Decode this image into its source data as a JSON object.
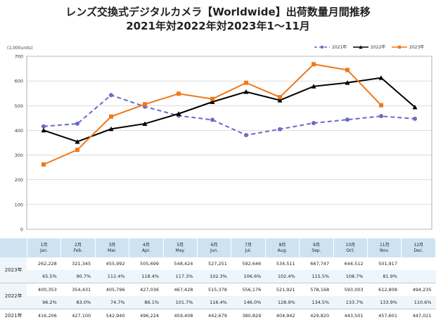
{
  "title_line1": "レンズ交換式デジタルカメラ【Worldwide】出荷数量月間推移",
  "title_line2": "2021年対2022年対2023年1～11月",
  "chart_data": {
    "type": "line",
    "unit_label": "(1,000units)",
    "ylim": [
      0,
      700
    ],
    "yticks": [
      0,
      100,
      200,
      300,
      400,
      500,
      600,
      700
    ],
    "grid": "horizontal",
    "legend_position": "top-right",
    "categories": [
      "1月 Jan.",
      "2月 Feb.",
      "3月 Mar.",
      "4月 Apr.",
      "5月 May.",
      "6月 Jun.",
      "7月 Jul.",
      "8月 Aug.",
      "9月 Sep.",
      "10月 Oct.",
      "11月 Nov.",
      "12月 Dec."
    ],
    "series": [
      {
        "name": "2021年",
        "color": "#6a6ac8",
        "style": "dashed",
        "marker": "circle",
        "values": [
          416.2,
          427.1,
          542.9,
          496.2,
          459.4,
          442.7,
          380.8,
          404.9,
          429.8,
          443.5,
          457.6,
          447.0
        ]
      },
      {
        "name": "2022年",
        "color": "#000000",
        "style": "solid",
        "marker": "triangle",
        "values": [
          400.4,
          354.4,
          405.8,
          427.0,
          467.4,
          515.4,
          556.2,
          521.9,
          578.2,
          593.0,
          612.8,
          494.2
        ]
      },
      {
        "name": "2023年",
        "color": "#f07818",
        "style": "solid",
        "marker": "square",
        "values": [
          262.2,
          321.3,
          456.0,
          505.7,
          548.4,
          527.3,
          592.6,
          534.5,
          667.7,
          644.5,
          501.9,
          null
        ]
      }
    ]
  },
  "table": {
    "months": [
      {
        "jp": "1月",
        "en": "Jan."
      },
      {
        "jp": "2月",
        "en": "Feb."
      },
      {
        "jp": "3月",
        "en": "Mar."
      },
      {
        "jp": "4月",
        "en": "Apr."
      },
      {
        "jp": "5月",
        "en": "May."
      },
      {
        "jp": "6月",
        "en": "Jun."
      },
      {
        "jp": "7月",
        "en": "Jul."
      },
      {
        "jp": "8月",
        "en": "Aug."
      },
      {
        "jp": "9月",
        "en": "Sep."
      },
      {
        "jp": "10月",
        "en": "Oct."
      },
      {
        "jp": "11月",
        "en": "Nov."
      },
      {
        "jp": "12月",
        "en": "Dec."
      }
    ],
    "rows": [
      {
        "label": "2023年",
        "values": [
          "262,228",
          "321,345",
          "455,992",
          "505,699",
          "548,424",
          "527,251",
          "592,646",
          "534,511",
          "667,747",
          "644,512",
          "501,917",
          ""
        ],
        "pct": [
          "65.5%",
          "90.7%",
          "112.4%",
          "118.4%",
          "117.3%",
          "102.3%",
          "106.6%",
          "102.4%",
          "115.5%",
          "108.7%",
          "81.9%",
          ""
        ]
      },
      {
        "label": "2022年",
        "values": [
          "400,353",
          "354,431",
          "405,796",
          "427,036",
          "467,428",
          "515,378",
          "556,176",
          "521,921",
          "578,168",
          "593,003",
          "612,808",
          "494,235"
        ],
        "pct": [
          "96.2%",
          "83.0%",
          "74.7%",
          "86.1%",
          "101.7%",
          "116.4%",
          "146.0%",
          "128.9%",
          "134.5%",
          "133.7%",
          "133.9%",
          "110.6%"
        ]
      },
      {
        "label": "2021年",
        "values": [
          "416,206",
          "427,100",
          "542,940",
          "496,224",
          "459,408",
          "442,679",
          "380,829",
          "404,942",
          "429,820",
          "443,501",
          "457,601",
          "447,021"
        ],
        "pct": []
      }
    ]
  }
}
